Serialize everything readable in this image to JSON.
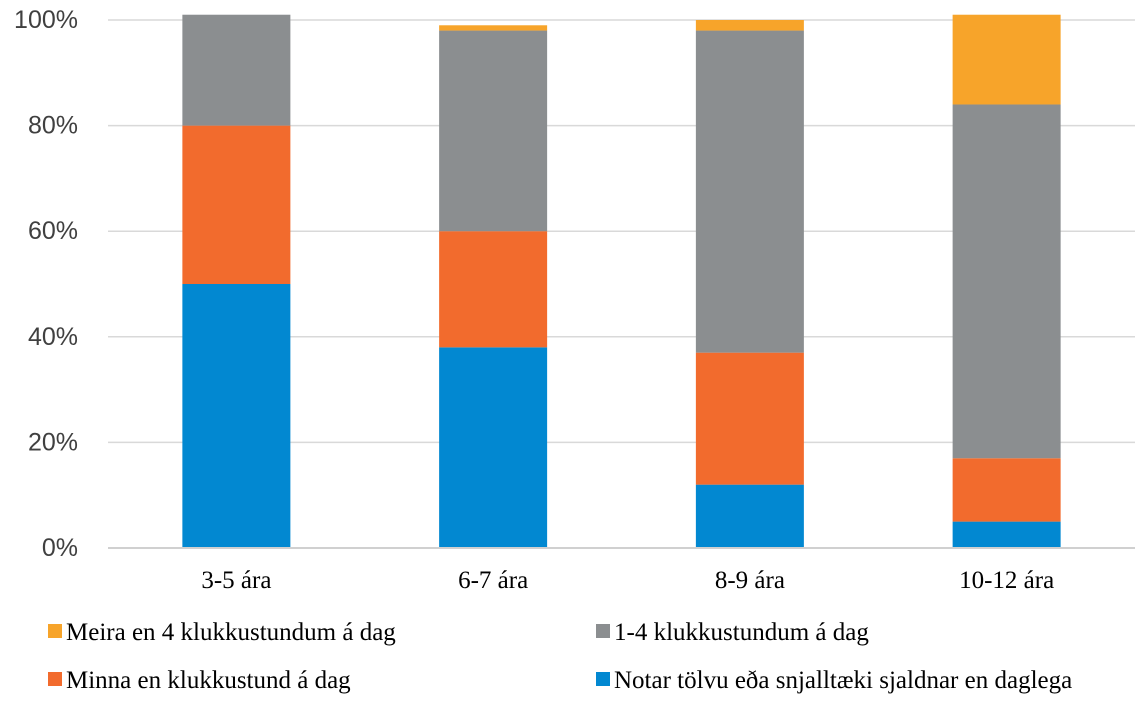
{
  "chart_data": {
    "type": "bar",
    "stacked": true,
    "categories": [
      "3-5 ára",
      "6-7 ára",
      "8-9 ára",
      "10-12 ára"
    ],
    "series": [
      {
        "name": "Notar tölvu eða snjalltæki sjaldnar en daglega",
        "color": "#0288d1",
        "values": [
          50,
          38,
          12,
          5
        ]
      },
      {
        "name": "Minna en klukkustund á dag",
        "color": "#f26b2d",
        "values": [
          30,
          22,
          25,
          12
        ]
      },
      {
        "name": "1-4 klukkustundum á dag",
        "color": "#8b8e90",
        "values": [
          21,
          38,
          61,
          67
        ]
      },
      {
        "name": "Meira en 4 klukkustundum á dag",
        "color": "#f7a42a",
        "values": [
          0,
          1,
          2,
          17
        ]
      }
    ],
    "ylim": [
      0,
      100
    ],
    "yticks": [
      "0%",
      "20%",
      "40%",
      "60%",
      "80%",
      "100%"
    ],
    "grid": true,
    "legend_position": "bottom",
    "legend_order": [
      3,
      2,
      1,
      0
    ],
    "title": "",
    "xlabel": "",
    "ylabel": ""
  }
}
